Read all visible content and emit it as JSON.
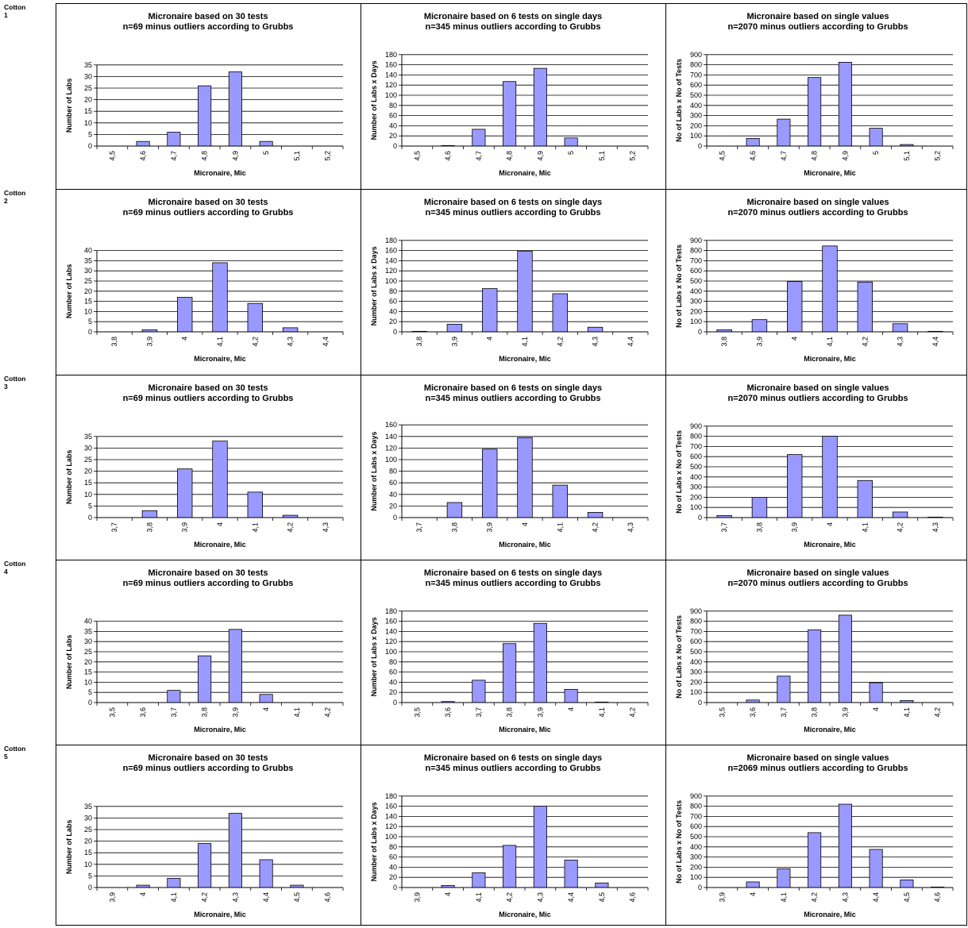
{
  "rows": [
    {
      "label": "Cotton 1"
    },
    {
      "label": "Cotton 2"
    },
    {
      "label": "Cotton 3"
    },
    {
      "label": "Cotton 4"
    },
    {
      "label": "Cotton 5"
    }
  ],
  "chart_data": [
    {
      "row": 1,
      "col": 1,
      "type": "bar",
      "title": [
        "Micronaire based on 30 tests",
        "n=69 minus outliers according to Grubbs"
      ],
      "xlabel": "Micronaire, Mic",
      "ylabel": "Number of Labs",
      "categories": [
        "4,5",
        "4,6",
        "4,7",
        "4,8",
        "4,9",
        "5",
        "5,1",
        "5,2"
      ],
      "values": [
        0,
        2,
        6,
        26,
        32,
        2,
        0,
        0
      ],
      "ylim": [
        0,
        35
      ],
      "ystep": 5,
      "grid": true,
      "bar_color": "#9999ff"
    },
    {
      "row": 1,
      "col": 2,
      "type": "bar",
      "title": [
        "Micronaire based on 6 tests on single days",
        "n=345 minus outliers according to Grubbs"
      ],
      "xlabel": "Micronaire, Mic",
      "ylabel": "Number of Labs x Days",
      "categories": [
        "4,5",
        "4,6",
        "4,7",
        "4,8",
        "4,9",
        "5",
        "5,1",
        "5,2"
      ],
      "values": [
        0,
        1,
        33,
        127,
        153,
        16,
        0,
        0
      ],
      "ylim": [
        0,
        180
      ],
      "ystep": 20,
      "grid": true,
      "bar_color": "#9999ff"
    },
    {
      "row": 1,
      "col": 3,
      "type": "bar",
      "title": [
        "Micronaire based on single values",
        "n=2070 minus outliers according to Grubbs"
      ],
      "xlabel": "Micronaire, Mic",
      "ylabel": "No of Labs x No of Tests",
      "categories": [
        "4,5",
        "4,6",
        "4,7",
        "4,8",
        "4,9",
        "5",
        "5,1",
        "5,2"
      ],
      "values": [
        0,
        75,
        265,
        675,
        825,
        175,
        15,
        0
      ],
      "ylim": [
        0,
        900
      ],
      "ystep": 100,
      "grid": true,
      "bar_color": "#9999ff"
    },
    {
      "row": 2,
      "col": 1,
      "type": "bar",
      "title": [
        "Micronaire based on 30 tests",
        "n=69 minus outliers according to Grubbs"
      ],
      "xlabel": "Micronaire, Mic",
      "ylabel": "Number of Labs",
      "categories": [
        "3,8",
        "3,9",
        "4",
        "4,1",
        "4,2",
        "4,3",
        "4,4"
      ],
      "values": [
        0,
        1,
        17,
        34,
        14,
        2,
        0
      ],
      "ylim": [
        0,
        40
      ],
      "ystep": 5,
      "grid": true,
      "bar_color": "#9999ff"
    },
    {
      "row": 2,
      "col": 2,
      "type": "bar",
      "title": [
        "Micronaire based on 6 tests on single days",
        "n=345 minus outliers according to Grubbs"
      ],
      "xlabel": "Micronaire, Mic",
      "ylabel": "Number of Labs x Days",
      "categories": [
        "3,8",
        "3,9",
        "4",
        "4,1",
        "4,2",
        "4,3",
        "4,4"
      ],
      "values": [
        1,
        15,
        85,
        159,
        75,
        9,
        0
      ],
      "ylim": [
        0,
        180
      ],
      "ystep": 20,
      "grid": true,
      "bar_color": "#9999ff"
    },
    {
      "row": 2,
      "col": 3,
      "type": "bar",
      "title": [
        "Micronaire based on single values",
        "n=2070 minus outliers according to Grubbs"
      ],
      "xlabel": "Micronaire, Mic",
      "ylabel": "No of Labs x No of Tests",
      "categories": [
        "3,8",
        "3,9",
        "4",
        "4,1",
        "4,2",
        "4,3",
        "4,4"
      ],
      "values": [
        20,
        120,
        495,
        845,
        490,
        80,
        5
      ],
      "ylim": [
        0,
        900
      ],
      "ystep": 100,
      "grid": true,
      "bar_color": "#9999ff"
    },
    {
      "row": 3,
      "col": 1,
      "type": "bar",
      "title": [
        "Micronaire based on 30 tests",
        "n=69 minus outliers according to Grubbs"
      ],
      "xlabel": "Micronaire, Mic",
      "ylabel": "Number of Labs",
      "categories": [
        "3,7",
        "3,8",
        "3,9",
        "4",
        "4,1",
        "4,2",
        "4,3"
      ],
      "values": [
        0,
        3,
        21,
        33,
        11,
        1,
        0
      ],
      "ylim": [
        0,
        35
      ],
      "ystep": 5,
      "grid": true,
      "bar_color": "#9999ff"
    },
    {
      "row": 3,
      "col": 2,
      "type": "bar",
      "title": [
        "Micronaire based on 6 tests on single days",
        "n=345 minus outliers according to Grubbs"
      ],
      "xlabel": "Micronaire, Mic",
      "ylabel": "Number of Labs x Days",
      "categories": [
        "3,7",
        "3,8",
        "3,9",
        "4",
        "4,1",
        "4,2",
        "4,3"
      ],
      "values": [
        0,
        26,
        118,
        138,
        56,
        9,
        0
      ],
      "ylim": [
        0,
        160
      ],
      "ystep": 20,
      "grid": true,
      "bar_color": "#9999ff"
    },
    {
      "row": 3,
      "col": 3,
      "type": "bar",
      "title": [
        "Micronaire based on single values",
        "n=2070 minus outliers according to Grubbs"
      ],
      "xlabel": "Micronaire, Mic",
      "ylabel": "No of Labs x No of Tests",
      "categories": [
        "3,7",
        "3,8",
        "3,9",
        "4",
        "4,1",
        "4,2",
        "4,3"
      ],
      "values": [
        20,
        200,
        620,
        800,
        365,
        55,
        5
      ],
      "ylim": [
        0,
        900
      ],
      "ystep": 100,
      "grid": true,
      "bar_color": "#9999ff"
    },
    {
      "row": 4,
      "col": 1,
      "type": "bar",
      "title": [
        "Micronaire based on 30 tests",
        "n=69 minus outliers according to Grubbs"
      ],
      "xlabel": "Micronaire, Mic",
      "ylabel": "Number of Labs",
      "categories": [
        "3,5",
        "3,6",
        "3,7",
        "3,8",
        "3,9",
        "4",
        "4,1",
        "4,2"
      ],
      "values": [
        0,
        0,
        6,
        23,
        36,
        4,
        0,
        0
      ],
      "ylim": [
        0,
        40
      ],
      "ystep": 5,
      "grid": true,
      "bar_color": "#9999ff"
    },
    {
      "row": 4,
      "col": 2,
      "type": "bar",
      "title": [
        "Micronaire based on 6 tests on single days",
        "n=345 minus outliers according to Grubbs"
      ],
      "xlabel": "Micronaire, Mic",
      "ylabel": "Number of Labs x Days",
      "categories": [
        "3,5",
        "3,6",
        "3,7",
        "3,8",
        "3,9",
        "4",
        "4,1",
        "4,2"
      ],
      "values": [
        0,
        2,
        44,
        116,
        156,
        26,
        1,
        0
      ],
      "ylim": [
        0,
        180
      ],
      "ystep": 20,
      "grid": true,
      "bar_color": "#9999ff"
    },
    {
      "row": 4,
      "col": 3,
      "type": "bar",
      "title": [
        "Micronaire based on single values",
        "n=2070 minus outliers according to Grubbs"
      ],
      "xlabel": "Micronaire, Mic",
      "ylabel": "No of Labs x No of Tests",
      "categories": [
        "3,5",
        "3,6",
        "3,7",
        "3,8",
        "3,9",
        "4",
        "4,1",
        "4,2"
      ],
      "values": [
        0,
        25,
        260,
        715,
        860,
        195,
        20,
        0
      ],
      "ylim": [
        0,
        900
      ],
      "ystep": 100,
      "grid": true,
      "bar_color": "#9999ff"
    },
    {
      "row": 5,
      "col": 1,
      "type": "bar",
      "title": [
        "Micronaire based on 30 tests",
        "n=69 minus outliers according to Grubbs"
      ],
      "xlabel": "Micronaire, Mic",
      "ylabel": "Number of Labs",
      "categories": [
        "3,9",
        "4",
        "4,1",
        "4,2",
        "4,3",
        "4,4",
        "4,5",
        "4,6"
      ],
      "values": [
        0,
        1,
        4,
        19,
        32,
        12,
        1,
        0
      ],
      "ylim": [
        0,
        35
      ],
      "ystep": 5,
      "grid": true,
      "bar_color": "#9999ff"
    },
    {
      "row": 5,
      "col": 2,
      "type": "bar",
      "title": [
        "Micronaire based on 6 tests on single days",
        "n=345 minus outliers according to Grubbs"
      ],
      "xlabel": "Micronaire, Mic",
      "ylabel": "Number of Labs x Days",
      "categories": [
        "3,9",
        "4",
        "4,1",
        "4,2",
        "4,3",
        "4,4",
        "4,5",
        "4,6"
      ],
      "values": [
        0,
        4,
        29,
        83,
        160,
        54,
        9,
        0
      ],
      "ylim": [
        0,
        180
      ],
      "ystep": 20,
      "grid": true,
      "bar_color": "#9999ff"
    },
    {
      "row": 5,
      "col": 3,
      "type": "bar",
      "title": [
        "Micronaire based on single values",
        "n=2069 minus outliers according to Grubbs"
      ],
      "xlabel": "Micronaire, Mic",
      "ylabel": "No of Labs x No of Tests",
      "categories": [
        "3,9",
        "4",
        "4,1",
        "4,2",
        "4,3",
        "4,4",
        "4,5",
        "4,6"
      ],
      "values": [
        0,
        55,
        185,
        540,
        820,
        375,
        75,
        5
      ],
      "ylim": [
        0,
        900
      ],
      "ystep": 100,
      "grid": true,
      "bar_color": "#9999ff"
    }
  ]
}
